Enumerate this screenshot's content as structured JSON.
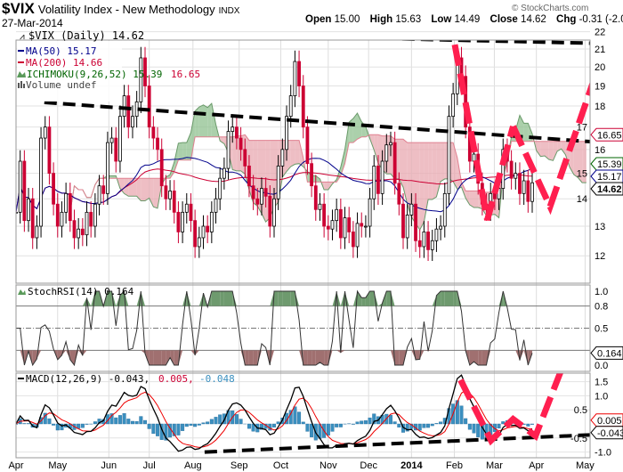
{
  "header": {
    "symbol": "$VIX",
    "name": "Volatility Index - New Methodology",
    "exchange": "INDX",
    "date": "27-Mar-2014",
    "open_label": "Open",
    "open": "15.00",
    "high_label": "High",
    "high": "15.63",
    "low_label": "Low",
    "low": "14.49",
    "close_label": "Close",
    "close": "14.62",
    "chg_label": "Chg",
    "chg": "-0.31 (-2.08%)",
    "brand": "© StockCharts.com"
  },
  "legend": {
    "price": "$VIX (Daily) 14.62",
    "ma50": "MA(50) 15.17",
    "ma200": "MA(200) 14.66",
    "ichimoku": "ICHIMOKU(9,26,52) 15.39",
    "ichimoku_b": "16.65",
    "volume": "Volume undef",
    "stochrsi": "StochRSI(14) 0.164",
    "macd": "MACD(12,26,9) -0.043,",
    "macd_signal": "0.005,",
    "macd_hist": "-0.048"
  },
  "colors": {
    "up": "#000000",
    "down": "#cc0033",
    "ma50": "#00008b",
    "ma200": "#cc0033",
    "cloud_green": "#8fc08f",
    "cloud_red": "#e8a8b0",
    "hist": "#3a8fbf",
    "annot_red": "#ff1f4f"
  },
  "chart_data": {
    "type": "candlestick",
    "scale": "log",
    "ylim": [
      11.6,
      22.5
    ],
    "price_ticks": [
      12,
      13,
      14,
      15,
      16,
      17,
      18,
      19,
      20,
      21,
      22
    ],
    "x_ticks": [
      {
        "label": "Apr",
        "i": 0
      },
      {
        "label": "May",
        "i": 10
      },
      {
        "label": "Jun",
        "i": 22.3
      },
      {
        "label": "Jul",
        "i": 32
      },
      {
        "label": "Aug",
        "i": 42.5
      },
      {
        "label": "Sep",
        "i": 53.6
      },
      {
        "label": "Oct",
        "i": 63.6
      },
      {
        "label": "Nov",
        "i": 75
      },
      {
        "label": "Dec",
        "i": 84.7
      },
      {
        "label": "2014",
        "i": 95,
        "bold": true
      },
      {
        "label": "Feb",
        "i": 105.3
      },
      {
        "label": "Mar",
        "i": 114.9
      },
      {
        "label": "Apr",
        "i": 125
      },
      {
        "label": "May",
        "i": 136.7
      }
    ],
    "close": [
      13.5,
      15.5,
      13.2,
      14,
      12.6,
      13,
      16.5,
      17,
      15,
      13.8,
      13,
      13.5,
      14.2,
      13.2,
      12.6,
      12.9,
      12.7,
      13.5,
      13.0,
      13.8,
      14.5,
      14.2,
      16.3,
      16.5,
      15.5,
      17.5,
      18.5,
      17,
      17.5,
      18.2,
      20.5,
      19,
      17,
      16.5,
      16,
      14.5,
      14,
      14.3,
      13.5,
      12.8,
      13.5,
      13.8,
      13.2,
      12.3,
      12.6,
      13,
      12.8,
      13.5,
      14,
      14.8,
      15.2,
      16.8,
      17,
      16.5,
      16,
      15.3,
      14.5,
      14.0,
      13.8,
      14.4,
      14.1,
      13,
      14,
      15.3,
      16,
      17.5,
      18.5,
      20.3,
      19,
      17,
      15.4,
      14.5,
      13.6,
      13.8,
      13.0,
      12.9,
      13.2,
      13.6,
      12.6,
      13.3,
      12.8,
      12.3,
      13.1,
      13.0,
      13.0,
      14.0,
      15.3,
      14.2,
      15.5,
      16.2,
      16.3,
      14.6,
      13.8,
      12.6,
      13.4,
      13.8,
      12.5,
      12.3,
      12.8,
      12.2,
      12.5,
      12.9,
      13.0,
      14.2,
      17.5,
      18.6,
      20.5,
      19.5,
      17.0,
      15.5,
      15.8,
      14.6,
      13.8,
      13.6,
      14.2,
      14.0,
      14.4,
      16.0,
      15.5,
      14.8,
      15.0,
      14.2,
      14.7,
      13.9,
      14.62
    ],
    "last_values": {
      "price": "14.62",
      "ma50": "15.17",
      "ichimoku_a": "15.39",
      "ichimoku_b": "16.65",
      "stochrsi": "0.164",
      "macd": "-0.043",
      "signal": "0.005",
      "hist": "-0.048"
    },
    "stoch_ticks": [
      {
        "v": 1.0,
        "label": "1.0"
      },
      {
        "v": 0.8,
        "label": "0.8"
      },
      {
        "v": 0.5,
        "label": "0.5"
      },
      {
        "v": 0.0,
        "label": "0.0"
      }
    ],
    "macd_ticks": [
      {
        "v": 1.5,
        "label": "1.5"
      },
      {
        "v": 1.0,
        "label": "1.0"
      },
      {
        "v": 0.5,
        "label": "0.5"
      },
      {
        "v": -0.5,
        "label": "-0.5"
      },
      {
        "v": -1.0,
        "label": "-1.0"
      }
    ],
    "annotations": {
      "price_black": [
        [
          [
            29.9,
            21.93
          ],
          [
            143.6,
            21.3
          ]
        ],
        [
          [
            6.8,
            18.17
          ],
          [
            143.6,
            16.27
          ]
        ]
      ],
      "price_red": [
        [
          105.4,
          21.25
        ],
        [
          113.2,
          13.22
        ],
        [
          119.4,
          17.03
        ]
      ],
      "price_red2": [
        [
          119.4,
          17.03
        ],
        [
          128.3,
          13.71
        ],
        [
          141.5,
          21.1
        ]
      ],
      "macd_black": [
        [
          45.3,
          -1.0
        ],
        [
          145.7,
          -0.34
        ]
      ],
      "macd_red": [
        [
          106.8,
          1.56
        ],
        [
          114.1,
          -0.59
        ],
        [
          119.4,
          0.17
        ],
        [
          124.8,
          -0.43
        ],
        [
          131.2,
          2.0
        ]
      ]
    }
  }
}
